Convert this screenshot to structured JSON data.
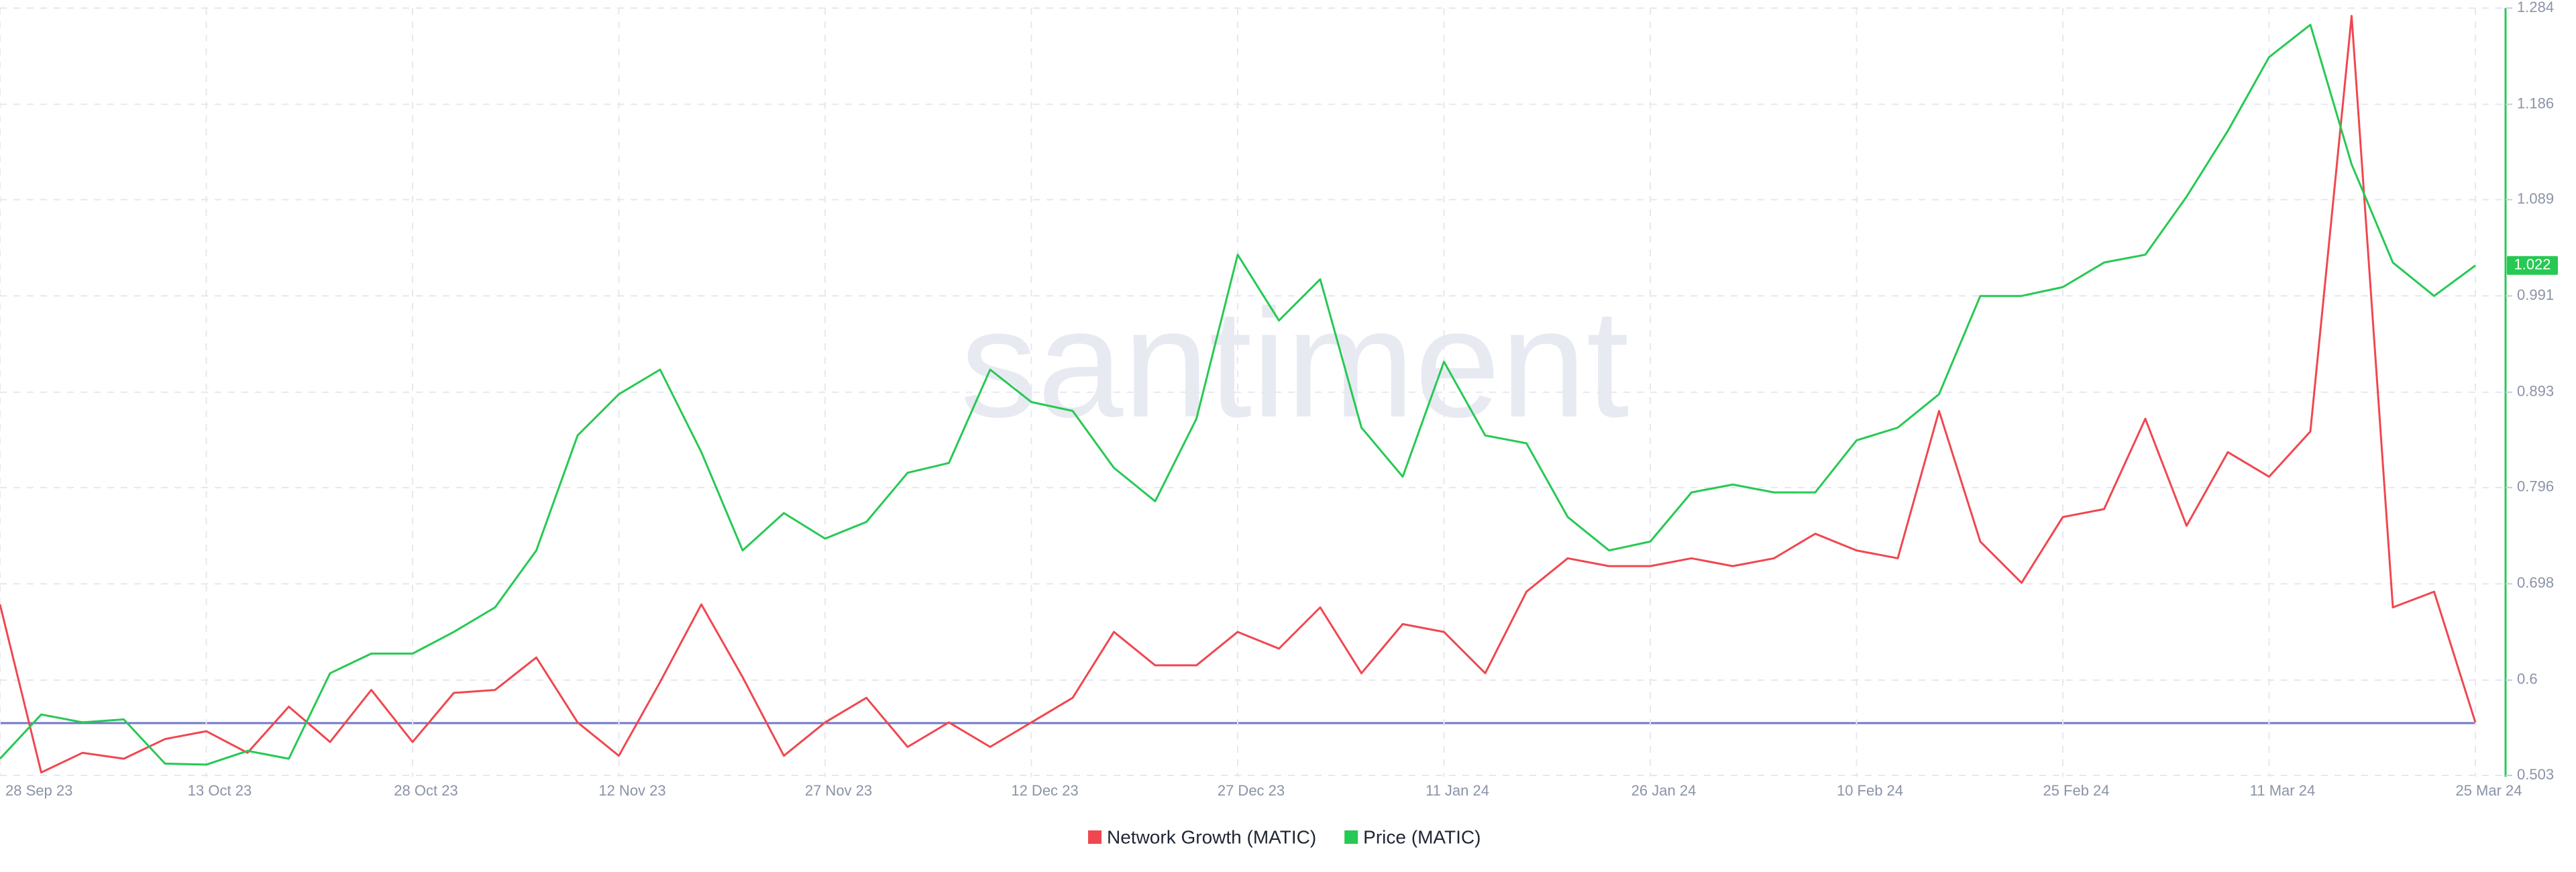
{
  "chart_data": {
    "type": "line",
    "watermark": "santiment",
    "x": [
      "28 Sep 23",
      null,
      null,
      null,
      null,
      "13 Oct 23",
      null,
      null,
      null,
      null,
      "28 Oct 23",
      null,
      null,
      null,
      null,
      "12 Nov 23",
      null,
      null,
      null,
      null,
      "27 Nov 23",
      null,
      null,
      null,
      null,
      "12 Dec 23",
      null,
      null,
      null,
      null,
      "27 Dec 23",
      null,
      null,
      null,
      null,
      "11 Jan 24",
      null,
      null,
      null,
      null,
      "26 Jan 24",
      null,
      null,
      null,
      null,
      "10 Feb 24",
      null,
      null,
      null,
      null,
      "25 Feb 24",
      null,
      null,
      null,
      null,
      "11 Mar 24",
      null,
      null,
      null,
      null,
      "25 Mar 24"
    ],
    "series": [
      {
        "name": "Network Growth (MATIC)",
        "color": "#f0474f",
        "axis": "y2",
        "values": [
          0.677,
          0.506,
          0.526,
          0.52,
          0.54,
          0.548,
          0.526,
          0.573,
          0.537,
          0.59,
          0.537,
          0.587,
          0.59,
          0.623,
          0.557,
          0.523,
          0.598,
          0.677,
          0.603,
          0.523,
          0.557,
          0.582,
          0.532,
          0.557,
          0.532,
          0.557,
          0.582,
          0.649,
          0.615,
          0.615,
          0.649,
          0.632,
          0.674,
          0.607,
          0.657,
          0.649,
          0.607,
          0.69,
          0.724,
          0.716,
          0.716,
          0.724,
          0.716,
          0.724,
          0.749,
          0.732,
          0.724,
          0.874,
          0.741,
          0.699,
          0.766,
          0.774,
          0.866,
          0.757,
          0.832,
          0.807,
          0.853,
          1.276,
          0.674,
          0.69,
          0.557
        ]
      },
      {
        "name": "Price (MATIC)",
        "color": "#26c953",
        "axis": "y2",
        "values": [
          0.52,
          0.565,
          0.557,
          0.56,
          0.515,
          0.514,
          0.528,
          0.52,
          0.607,
          0.627,
          0.627,
          0.649,
          0.674,
          0.732,
          0.849,
          0.891,
          0.916,
          0.832,
          0.732,
          0.77,
          0.744,
          0.761,
          0.811,
          0.821,
          0.916,
          0.883,
          0.874,
          0.816,
          0.782,
          0.866,
          1.033,
          0.966,
          1.008,
          0.857,
          0.807,
          0.924,
          0.849,
          0.841,
          0.766,
          0.732,
          0.741,
          0.791,
          0.799,
          0.791,
          0.791,
          0.844,
          0.857,
          0.891,
          0.991,
          0.991,
          1.0,
          1.025,
          1.033,
          1.092,
          1.159,
          1.234,
          1.267,
          1.125,
          1.025,
          0.991,
          1.022
        ]
      }
    ],
    "y2lim": [
      0.503,
      1.284
    ],
    "y2ticks": [
      0.503,
      0.6,
      0.698,
      0.796,
      0.893,
      0.991,
      1.089,
      1.186,
      1.284
    ],
    "grid": true
  }
}
